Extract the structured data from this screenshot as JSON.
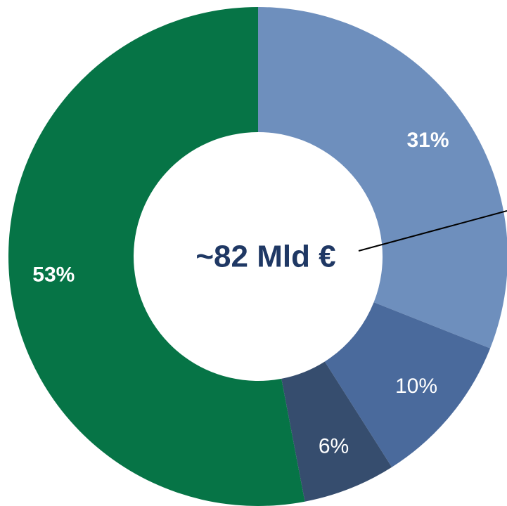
{
  "chart_data": {
    "type": "donut",
    "center_label": "~82 Mld €",
    "categories": [
      null,
      null,
      null,
      null
    ],
    "values": [
      31,
      10,
      6,
      53
    ],
    "value_labels": [
      "31%",
      "10%",
      "6%",
      "53%"
    ],
    "colors": [
      "#6e8fbd",
      "#4a6a9c",
      "#364d6e",
      "#067446"
    ]
  }
}
